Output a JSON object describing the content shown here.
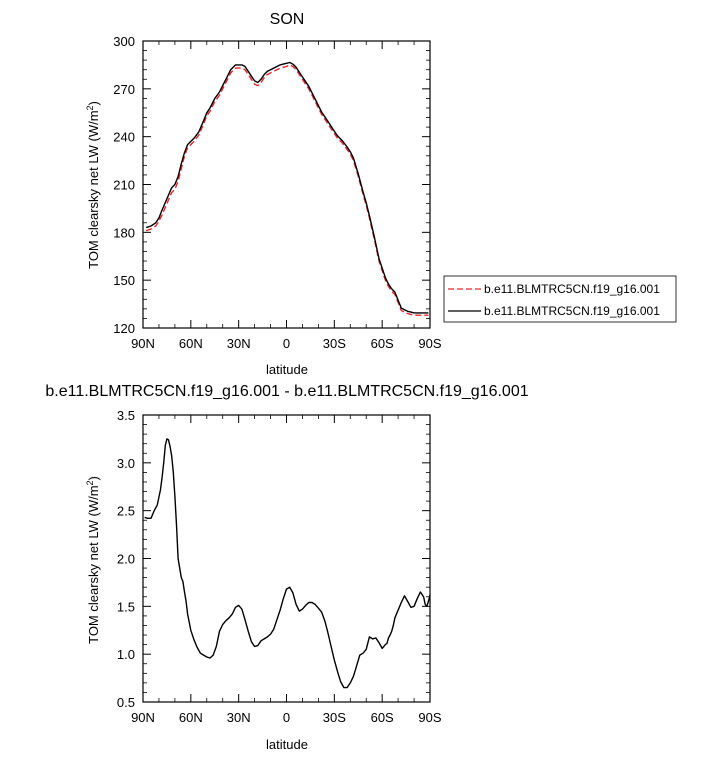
{
  "chart_data": [
    {
      "id": "top",
      "type": "line",
      "title": "SON",
      "xlabel": "latitude",
      "ylabel": "TOM clearsky net LW (W/m",
      "ylabel_sup": "2",
      "ylabel_end": ")",
      "xlim": [
        90,
        -90
      ],
      "ylim": [
        120,
        300
      ],
      "xticks": [
        90,
        60,
        30,
        0,
        -30,
        -60,
        -90
      ],
      "xtick_labels": [
        "90N",
        "60N",
        "30N",
        "0",
        "30S",
        "60S",
        "90S"
      ],
      "yticks": [
        120,
        150,
        180,
        210,
        240,
        270,
        300
      ],
      "ytick_labels": [
        "120",
        "150",
        "180",
        "210",
        "240",
        "270",
        "300"
      ],
      "grid": false,
      "legend": "right",
      "x": [
        88,
        85,
        82,
        80,
        78,
        75,
        72,
        70,
        68,
        66,
        64,
        62,
        60,
        58,
        55,
        52,
        50,
        48,
        45,
        42,
        40,
        38,
        35,
        32,
        30,
        28,
        26,
        24,
        22,
        20,
        18,
        16,
        14,
        12,
        10,
        8,
        6,
        4,
        2,
        0,
        -2,
        -4,
        -6,
        -8,
        -10,
        -12,
        -14,
        -16,
        -18,
        -20,
        -22,
        -24,
        -26,
        -28,
        -30,
        -32,
        -35,
        -38,
        -40,
        -42,
        -45,
        -48,
        -50,
        -52,
        -55,
        -58,
        -60,
        -62,
        -64,
        -66,
        -68,
        -70,
        -72,
        -74,
        -76,
        -78,
        -80,
        -82,
        -84,
        -86,
        -88,
        -89
      ],
      "series": [
        {
          "name": "b.e11.BLMTRC5CN.f19_g16.001",
          "color": "#e8242b",
          "dash": "dashed",
          "values": [
            181,
            182,
            184,
            187,
            191,
            198,
            205,
            207,
            212,
            220,
            228,
            233,
            235,
            237,
            241,
            248,
            253,
            256,
            262,
            266,
            270,
            274,
            280,
            283,
            283,
            283,
            282,
            279,
            276,
            273,
            272,
            274,
            277,
            279,
            280,
            281,
            282,
            283,
            283.5,
            284,
            285,
            284,
            282,
            279,
            276,
            273,
            270,
            266,
            262,
            258,
            254,
            251,
            248,
            245,
            242,
            239,
            236,
            232,
            229,
            225,
            215,
            204,
            197,
            189,
            176,
            162,
            156,
            150,
            146,
            143,
            141,
            136,
            131,
            130,
            129,
            128.5,
            128,
            128,
            128,
            128,
            128,
            128
          ]
        },
        {
          "name": "b.e11.BLMTRC5CN.f19_g16.001",
          "color": "#000000",
          "dash": "solid",
          "values": [
            183,
            184,
            186,
            189,
            194,
            201,
            208,
            210,
            215,
            223,
            230,
            235,
            237,
            239,
            243,
            250,
            255,
            258,
            264,
            268,
            272,
            276,
            282,
            285,
            285,
            285,
            284,
            281,
            278,
            275,
            274,
            276,
            279,
            281,
            282,
            283,
            284,
            285,
            285.5,
            286,
            286.5,
            285.5,
            283.5,
            280.5,
            277.5,
            274.5,
            271.5,
            267.5,
            263.5,
            259.5,
            255.5,
            252.5,
            249.5,
            246.5,
            243.5,
            240.5,
            237.5,
            233.5,
            230.5,
            226.5,
            216.5,
            205.5,
            198.5,
            190.5,
            177.5,
            163.5,
            157.5,
            151.5,
            147.5,
            144.5,
            142.5,
            137.5,
            132.5,
            131.5,
            130.5,
            130,
            129.5,
            129.5,
            129.5,
            129.5,
            129.5,
            129.5
          ]
        }
      ]
    },
    {
      "id": "bottom",
      "type": "line",
      "title": "b.e11.BLMTRC5CN.f19_g16.001 - b.e11.BLMTRC5CN.f19_g16.001",
      "xlabel": "latitude",
      "ylabel": "TOM clearsky net LW (W/m",
      "ylabel_sup": "2",
      "ylabel_end": ")",
      "xlim": [
        90,
        -90
      ],
      "ylim": [
        0.5,
        3.5
      ],
      "xticks": [
        90,
        60,
        30,
        0,
        -30,
        -60,
        -90
      ],
      "xtick_labels": [
        "90N",
        "60N",
        "30N",
        "0",
        "30S",
        "60S",
        "90S"
      ],
      "yticks": [
        0.5,
        1.0,
        1.5,
        2.0,
        2.5,
        3.0,
        3.5
      ],
      "ytick_labels": [
        "0.5",
        "1.0",
        "1.5",
        "2.0",
        "2.5",
        "3.0",
        "3.5"
      ],
      "grid": false,
      "x": [
        89,
        87,
        85,
        83,
        81,
        79,
        78,
        77,
        76,
        75,
        74,
        73,
        72,
        71,
        70,
        69,
        68,
        67,
        66,
        65,
        64,
        63,
        62,
        60,
        58,
        56,
        54,
        52,
        50,
        48,
        46,
        44,
        42,
        40,
        38,
        36,
        34,
        32,
        30,
        28,
        26,
        24,
        22,
        20,
        18,
        16,
        14,
        12,
        10,
        8,
        6,
        4,
        2,
        0,
        -2,
        -4,
        -6,
        -8,
        -10,
        -12,
        -14,
        -16,
        -18,
        -20,
        -22,
        -24,
        -26,
        -28,
        -30,
        -32,
        -34,
        -36,
        -38,
        -40,
        -42,
        -44,
        -46,
        -48,
        -50,
        -52,
        -54,
        -56,
        -58,
        -60,
        -62,
        -63,
        -64,
        -65,
        -66,
        -67,
        -68,
        -70,
        -72,
        -74,
        -76,
        -78,
        -80,
        -82,
        -84,
        -86,
        -87,
        -88,
        -89,
        -90
      ],
      "series": [
        {
          "name": "",
          "color": "#000000",
          "dash": "solid",
          "values": [
            2.43,
            2.42,
            2.42,
            2.5,
            2.56,
            2.72,
            2.85,
            3.0,
            3.18,
            3.25,
            3.24,
            3.17,
            3.07,
            2.9,
            2.65,
            2.35,
            2.0,
            1.9,
            1.8,
            1.76,
            1.65,
            1.55,
            1.42,
            1.25,
            1.15,
            1.07,
            1.01,
            0.99,
            0.97,
            0.96,
            0.99,
            1.08,
            1.24,
            1.31,
            1.35,
            1.38,
            1.42,
            1.49,
            1.51,
            1.47,
            1.36,
            1.24,
            1.13,
            1.08,
            1.09,
            1.14,
            1.16,
            1.18,
            1.21,
            1.26,
            1.36,
            1.46,
            1.58,
            1.68,
            1.7,
            1.64,
            1.52,
            1.45,
            1.47,
            1.51,
            1.54,
            1.54,
            1.52,
            1.48,
            1.44,
            1.35,
            1.22,
            1.08,
            0.94,
            0.82,
            0.71,
            0.65,
            0.65,
            0.7,
            0.77,
            0.88,
            0.99,
            1.01,
            1.05,
            1.18,
            1.16,
            1.17,
            1.12,
            1.06,
            1.1,
            1.11,
            1.17,
            1.2,
            1.24,
            1.3,
            1.38,
            1.46,
            1.54,
            1.61,
            1.55,
            1.49,
            1.5,
            1.58,
            1.65,
            1.6,
            1.52,
            1.5,
            1.55,
            1.62
          ]
        }
      ]
    }
  ]
}
